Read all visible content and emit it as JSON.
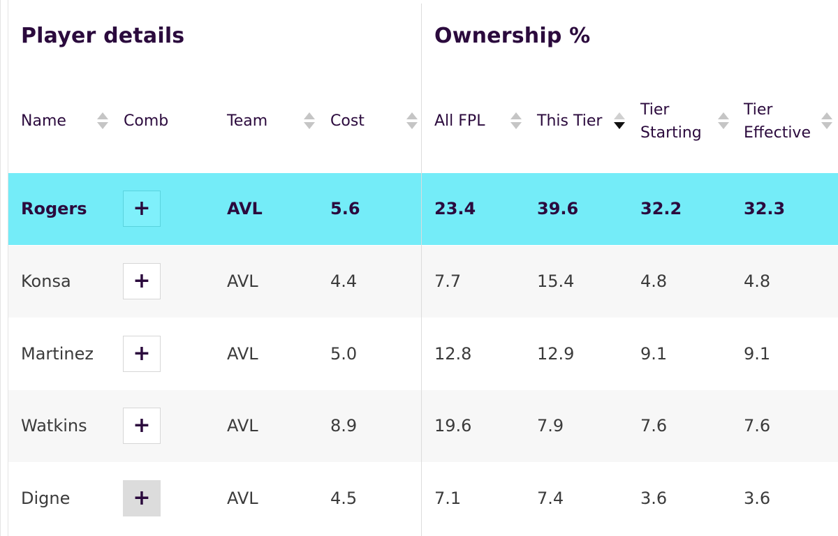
{
  "groups": {
    "player_details": "Player details",
    "ownership": "Ownership %"
  },
  "headers": {
    "name": "Name",
    "comb": "Comb",
    "team": "Team",
    "cost": "Cost",
    "all_fpl": "All FPL",
    "this_tier": "This Tier",
    "tier_starting": [
      "Tier",
      "Starting"
    ],
    "tier_effective": [
      "Tier",
      "Effective"
    ]
  },
  "sorted_by": "This Tier",
  "sort_direction": "descending",
  "add_icon": "+",
  "rows": [
    {
      "name": "Rogers",
      "team": "AVL",
      "cost": "5.6",
      "all_fpl": "23.4",
      "this_tier": "39.6",
      "tier_starting": "32.2",
      "tier_effective": "32.3"
    },
    {
      "name": "Konsa",
      "team": "AVL",
      "cost": "4.4",
      "all_fpl": "7.7",
      "this_tier": "15.4",
      "tier_starting": "4.8",
      "tier_effective": "4.8"
    },
    {
      "name": "Martinez",
      "team": "AVL",
      "cost": "5.0",
      "all_fpl": "12.8",
      "this_tier": "12.9",
      "tier_starting": "9.1",
      "tier_effective": "9.1"
    },
    {
      "name": "Watkins",
      "team": "AVL",
      "cost": "8.9",
      "all_fpl": "19.6",
      "this_tier": "7.9",
      "tier_starting": "7.6",
      "tier_effective": "7.6"
    },
    {
      "name": "Digne",
      "team": "AVL",
      "cost": "4.5",
      "all_fpl": "7.1",
      "this_tier": "7.4",
      "tier_starting": "3.6",
      "tier_effective": "3.6"
    }
  ],
  "colors": {
    "highlight_row": "#74ecf8",
    "stripe_row": "#f7f7f7",
    "heading_text": "#2b0a3d"
  }
}
